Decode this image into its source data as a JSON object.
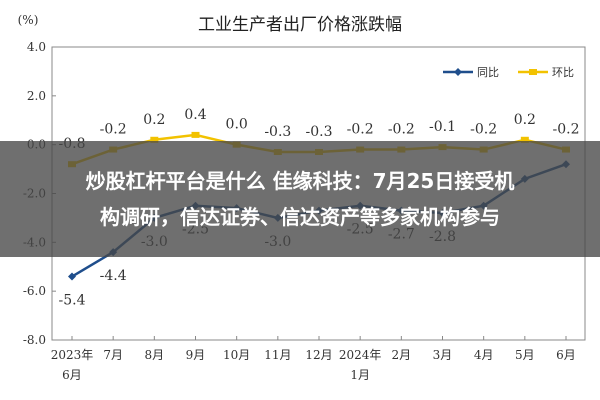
{
  "chart_data": {
    "type": "line",
    "title": "工业生产者出厂价格涨跌幅",
    "unit_label": "(%)",
    "ylim": [
      -8.0,
      4.0
    ],
    "yticks": [
      "4.0",
      "2.0",
      "0.0",
      "-2.0",
      "-4.0",
      "-6.0",
      "-8.0"
    ],
    "ytick_values": [
      4,
      2,
      0,
      -2,
      -4,
      -6,
      -8
    ],
    "categories": [
      "2023年6月",
      "7月",
      "8月",
      "9月",
      "10月",
      "11月",
      "12月",
      "2024年1月",
      "2月",
      "3月",
      "4月",
      "5月",
      "6月"
    ],
    "category_lines": [
      [
        "2023年",
        "6月"
      ],
      [
        "7月"
      ],
      [
        "8月"
      ],
      [
        "9月"
      ],
      [
        "10月"
      ],
      [
        "11月"
      ],
      [
        "12月"
      ],
      [
        "2024年",
        "1月"
      ],
      [
        "2月"
      ],
      [
        "3月"
      ],
      [
        "4月"
      ],
      [
        "5月"
      ],
      [
        "6月"
      ]
    ],
    "legend_position": "top-right",
    "series": [
      {
        "name": "同比",
        "color": "#1f4e8c",
        "values": [
          -5.4,
          -4.4,
          -3.0,
          -2.5,
          -2.6,
          -3.0,
          -2.7,
          -2.5,
          -2.7,
          -2.8,
          -2.5,
          -1.4,
          -0.8
        ],
        "labels": [
          "-5.4",
          "-4.4",
          "-3.0",
          "-2.5",
          "",
          "-3.0",
          "",
          "-2.5",
          "-2.7",
          "-2.8",
          "",
          "",
          ""
        ]
      },
      {
        "name": "环比",
        "color": "#f2c200",
        "values": [
          -0.8,
          -0.2,
          0.2,
          0.4,
          0.0,
          -0.3,
          -0.3,
          -0.2,
          -0.2,
          -0.1,
          -0.2,
          0.2,
          -0.2
        ],
        "labels": [
          "-0.8",
          "-0.2",
          "0.2",
          "0.4",
          "0.0",
          "-0.3",
          "-0.3",
          "-0.2",
          "-0.2",
          "-0.1",
          "-0.2",
          "0.2",
          "-0.2"
        ]
      }
    ]
  },
  "overlay": {
    "line1": "炒股杠杆平台是什么 佳缘科技：7月25日接受机",
    "line2": "构调研，信达证券、信达资产等多家机构参与"
  }
}
